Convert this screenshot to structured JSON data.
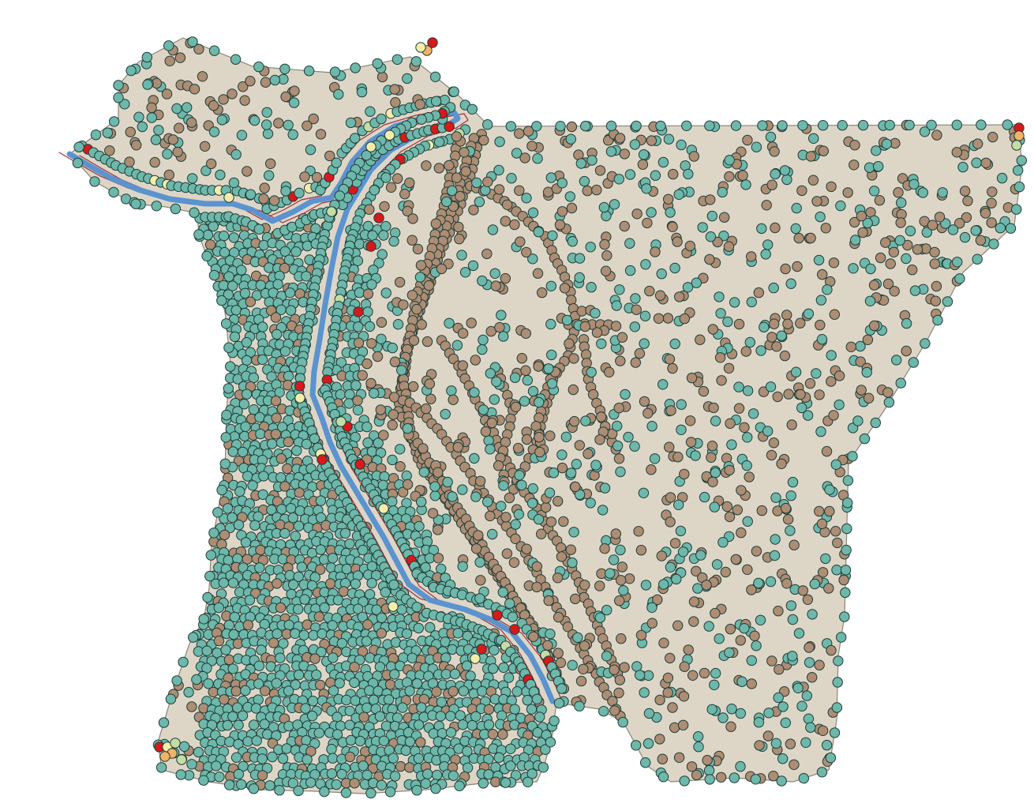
{
  "map": {
    "type": "point-scatter-over-polygon",
    "background_color": "#ffffff",
    "polygon_fill": "#ddd6c7",
    "polygon_stroke": "#8a8578",
    "point_outline": "#1f3b38",
    "river": {
      "color": "#5b93cf",
      "edge_color": "#a3303a"
    },
    "point_classes": [
      {
        "id": "teal",
        "color": "#6db8aa",
        "icon": "circle-marker"
      },
      {
        "id": "brown",
        "color": "#ad8d73",
        "icon": "circle-marker"
      },
      {
        "id": "yellow",
        "color": "#f4edaa",
        "icon": "circle-marker"
      },
      {
        "id": "green",
        "color": "#c4dda6",
        "icon": "circle-marker"
      },
      {
        "id": "orange",
        "color": "#f3b366",
        "icon": "circle-marker"
      },
      {
        "id": "red",
        "color": "#d7191c",
        "icon": "circle-marker"
      }
    ]
  }
}
